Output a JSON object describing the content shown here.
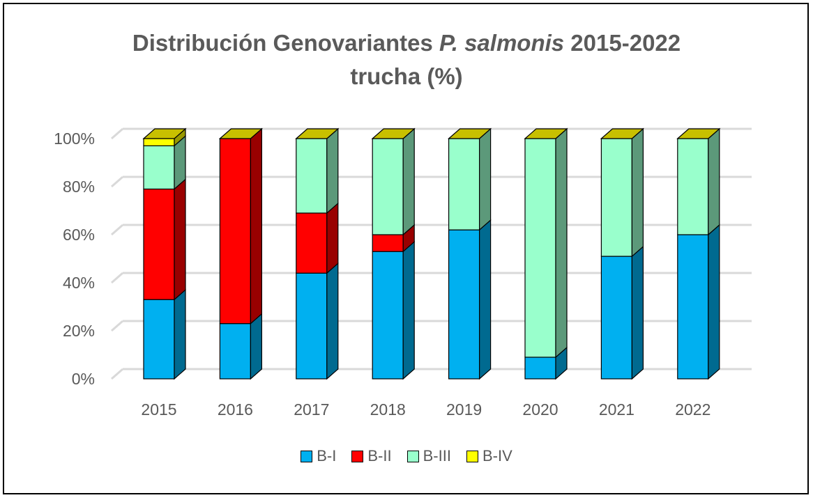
{
  "chart_data": {
    "type": "bar",
    "stacked": true,
    "percent_stacked": true,
    "three_d": true,
    "title_parts": [
      {
        "text": "Distribución Genovariantes ",
        "italic": false
      },
      {
        "text": "P. salmonis",
        "italic": true
      },
      {
        "text": " 2015-2022",
        "italic": false
      }
    ],
    "title_line2": "trucha (%)",
    "categories": [
      "2015",
      "2016",
      "2017",
      "2018",
      "2019",
      "2020",
      "2021",
      "2022"
    ],
    "series": [
      {
        "name": "B-I",
        "color": "#00b0f0",
        "values": [
          33,
          23,
          44,
          53,
          62,
          9,
          51,
          60
        ]
      },
      {
        "name": "B-II",
        "color": "#ff0000",
        "values": [
          46,
          77,
          25,
          7,
          0,
          0,
          0,
          0
        ]
      },
      {
        "name": "B-III",
        "color": "#99ffcc",
        "values": [
          18,
          0,
          31,
          40,
          38,
          91,
          49,
          40
        ]
      },
      {
        "name": "B-IV",
        "color": "#ffff00",
        "values": [
          3,
          0,
          0,
          0,
          0,
          0,
          0,
          0
        ]
      }
    ],
    "ylim": [
      0,
      100
    ],
    "y_ticks": [
      "0%",
      "20%",
      "40%",
      "60%",
      "80%",
      "100%"
    ],
    "grid": true,
    "legend_position": "bottom"
  }
}
